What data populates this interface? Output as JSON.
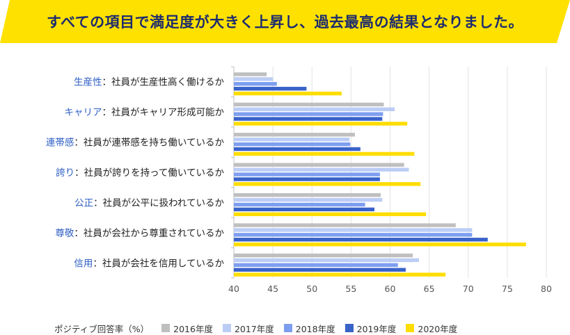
{
  "headline": "すべての項目で満足度が大きく上昇し、過去最高の結果となりました。",
  "colors": {
    "banner_bg": "#ffe100",
    "headline_text": "#1d2c6e",
    "category_key": "#2f5fc4",
    "category_text": "#222222",
    "series": [
      "#bfbfbf",
      "#bccdf5",
      "#7d9ef0",
      "#3a63c9",
      "#ffdd00"
    ]
  },
  "legend_title": "ポジティブ回答率（%）",
  "chart_data": {
    "type": "bar",
    "orientation": "horizontal",
    "xlim": [
      40,
      80
    ],
    "xticks": [
      "40",
      "45",
      "50",
      "55",
      "60",
      "65",
      "70",
      "75",
      "80"
    ],
    "grid": true,
    "legend_position": "bottom",
    "categories": [
      {
        "key": "生産性",
        "desc": "：社員が生産性高く働けるか"
      },
      {
        "key": "キャリア",
        "desc": "：社員がキャリア形成可能か"
      },
      {
        "key": "連帯感",
        "desc": "：社員が連帯感を持ち働いているか"
      },
      {
        "key": "誇り",
        "desc": "：社員が誇りを持って働いているか"
      },
      {
        "key": "公正",
        "desc": "：社員が公平に扱われているか"
      },
      {
        "key": "尊敬",
        "desc": "：社員が会社から尊重されているか"
      },
      {
        "key": "信用",
        "desc": "：社員が会社を信用しているか"
      }
    ],
    "series": [
      {
        "name": "2016年度",
        "values": [
          44.2,
          59.2,
          55.5,
          61.8,
          58.8,
          68.4,
          62.9
        ]
      },
      {
        "name": "2017年度",
        "values": [
          45.0,
          60.6,
          54.8,
          62.4,
          59.0,
          70.5,
          63.7
        ]
      },
      {
        "name": "2018年度",
        "values": [
          45.5,
          59.1,
          54.9,
          58.7,
          56.8,
          70.5,
          61.0
        ]
      },
      {
        "name": "2019年度",
        "values": [
          49.3,
          59.0,
          56.2,
          58.7,
          58.0,
          72.5,
          62.0
        ]
      },
      {
        "name": "2020年度",
        "values": [
          53.8,
          62.2,
          63.1,
          63.9,
          64.6,
          77.4,
          67.1
        ]
      }
    ]
  }
}
